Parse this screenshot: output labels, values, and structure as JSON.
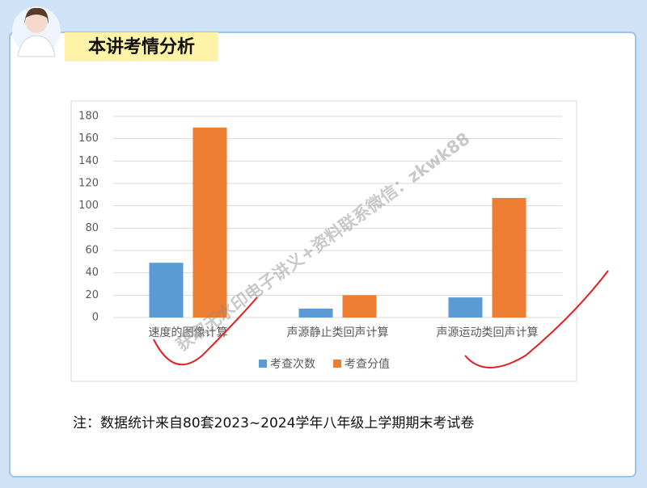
{
  "header": {
    "title": "本讲考情分析"
  },
  "chart_data": {
    "type": "bar",
    "categories": [
      "速度的图像计算",
      "声源静止类回声计算",
      "声源运动类回声计算"
    ],
    "series": [
      {
        "name": "考查次数",
        "color": "#5b9bd5",
        "values": [
          49,
          8,
          18
        ]
      },
      {
        "name": "考查分值",
        "color": "#ed7d31",
        "values": [
          170,
          20,
          107
        ]
      }
    ],
    "ylim": [
      0,
      180
    ],
    "yticks": [
      0,
      20,
      40,
      60,
      80,
      100,
      120,
      140,
      160,
      180
    ],
    "grid": true,
    "legend": "bottom"
  },
  "note": "注：数据统计来自80套2023~2024学年八年级上学期期末考试卷",
  "watermark": "获取无水印电子讲义+资料联系微信：zkwk88"
}
